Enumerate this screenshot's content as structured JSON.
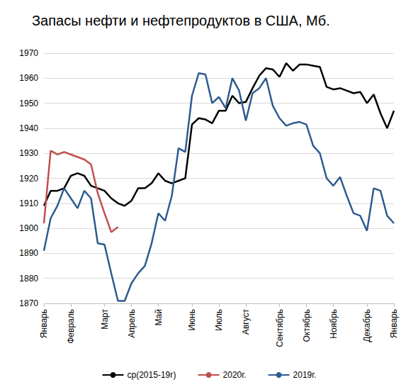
{
  "chart_data": {
    "type": "line",
    "title": "Запасы нефти и нефтепродуктов в США, Мб.",
    "categories": [
      "Январь",
      null,
      null,
      null,
      "Февраль",
      null,
      null,
      null,
      null,
      "Март",
      null,
      null,
      null,
      "Апрель",
      null,
      null,
      null,
      "Май",
      null,
      null,
      null,
      null,
      "Июнь",
      null,
      null,
      null,
      "Июль",
      null,
      null,
      null,
      "Август",
      null,
      null,
      null,
      null,
      "Сентябрь",
      null,
      null,
      null,
      "Октябрь",
      null,
      null,
      null,
      "Ноябрь",
      null,
      null,
      null,
      null,
      "Декабрь",
      null,
      null,
      null,
      "Январь"
    ],
    "series": [
      {
        "name": "ср(2015-19г)",
        "color": "#000000",
        "values": [
          1909,
          1915,
          1915,
          1916,
          1921,
          1922,
          1921,
          1917,
          1916,
          1915,
          1912,
          1910,
          1909,
          1911,
          1916,
          1916,
          1918,
          1922,
          1919,
          1918,
          1919,
          1920,
          1941.5,
          1944,
          1943.5,
          1942,
          1947,
          1947,
          1953,
          1950,
          1950.5,
          1956,
          1961,
          1964,
          1963.5,
          1960.5,
          1966,
          1963,
          1965.5,
          1965.5,
          1965,
          1964.5,
          1956.5,
          1955.5,
          1956,
          1955,
          1954,
          1954.5,
          1950,
          1953.5,
          1946,
          1940,
          1947
        ]
      },
      {
        "name": "2020г.",
        "color": "#c0504d",
        "values": [
          1902,
          1931,
          1929.5,
          1930.5,
          1929.5,
          1928.5,
          1927.5,
          1925.5,
          1914,
          1906,
          1898.5,
          1900.5,
          null,
          null,
          null,
          null,
          null,
          null,
          null,
          null,
          null,
          null,
          null,
          null,
          null,
          null,
          null,
          null,
          null,
          null,
          null,
          null,
          null,
          null,
          null,
          null,
          null,
          null,
          null,
          null,
          null,
          null,
          null,
          null,
          null,
          null,
          null,
          null,
          null,
          null,
          null,
          null,
          null
        ]
      },
      {
        "name": "2019г.",
        "color": "#2f5b8f",
        "values": [
          1891,
          1904,
          1909,
          1916,
          1912,
          1908,
          1915,
          1912,
          1894,
          1893.5,
          1882,
          1871,
          1871,
          1878,
          1882,
          1885,
          1894,
          1906,
          1903,
          1913,
          1932,
          1930.5,
          1953,
          1962,
          1961.5,
          1950,
          1952.5,
          1948,
          1960,
          1955,
          1943,
          1954,
          1956,
          1960,
          1949,
          1944,
          1941,
          1942,
          1942.5,
          1941.5,
          1933,
          1930,
          1920,
          1917,
          1920.5,
          1913,
          1906,
          1905,
          1899,
          1916,
          1915,
          1905,
          1902
        ]
      }
    ],
    "ylim": [
      1870,
      1970
    ],
    "yticks": [
      1870,
      1880,
      1890,
      1900,
      1910,
      1920,
      1930,
      1940,
      1950,
      1960,
      1970
    ],
    "grid": true,
    "legend": "bottom"
  }
}
